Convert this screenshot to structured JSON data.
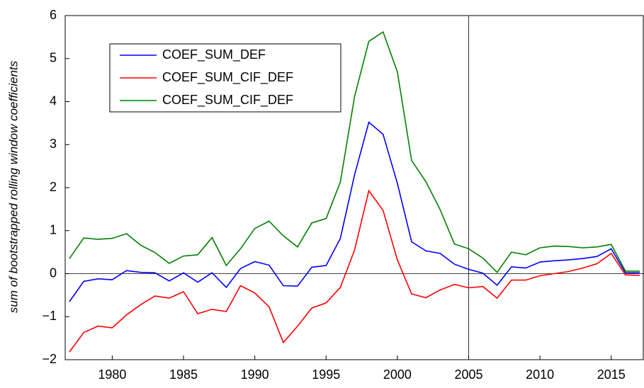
{
  "chart_data": {
    "type": "line",
    "y_label": "sum of bootstrapped rolling window coefficients",
    "x": [
      1977,
      1978,
      1979,
      1980,
      1981,
      1982,
      1983,
      1984,
      1985,
      1986,
      1987,
      1988,
      1989,
      1990,
      1991,
      1992,
      1993,
      1994,
      1995,
      1996,
      1997,
      1998,
      1999,
      2000,
      2001,
      2002,
      2003,
      2004,
      2005,
      2006,
      2007,
      2008,
      2009,
      2010,
      2011,
      2012,
      2013,
      2014,
      2015,
      2016,
      2017
    ],
    "series": [
      {
        "name": "COEF_SUM_DEF",
        "color": "#0000ff",
        "values": [
          -0.65,
          -0.18,
          -0.12,
          -0.14,
          0.07,
          0.03,
          0.02,
          -0.17,
          0.02,
          -0.2,
          0.02,
          -0.32,
          0.12,
          0.28,
          0.2,
          -0.28,
          -0.29,
          0.15,
          0.19,
          0.82,
          2.3,
          3.52,
          3.24,
          2.1,
          0.74,
          0.53,
          0.47,
          0.22,
          0.1,
          0.01,
          -0.27,
          0.16,
          0.13,
          0.27,
          0.3,
          0.32,
          0.35,
          0.4,
          0.58,
          0.02,
          0.02
        ]
      },
      {
        "name": "COEF_SUM_CIF_DEF",
        "color": "#ff0000",
        "values": [
          -1.82,
          -1.37,
          -1.22,
          -1.26,
          -0.96,
          -0.72,
          -0.52,
          -0.57,
          -0.42,
          -0.93,
          -0.83,
          -0.88,
          -0.28,
          -0.45,
          -0.77,
          -1.6,
          -1.22,
          -0.8,
          -0.68,
          -0.32,
          0.55,
          1.93,
          1.47,
          0.32,
          -0.47,
          -0.56,
          -0.38,
          -0.25,
          -0.33,
          -0.3,
          -0.57,
          -0.15,
          -0.15,
          -0.05,
          0.0,
          0.05,
          0.13,
          0.23,
          0.47,
          -0.03,
          -0.04
        ]
      },
      {
        "name": "COEF_SUM_CIF_DEF",
        "color": "#008000",
        "values": [
          0.35,
          0.83,
          0.8,
          0.82,
          0.93,
          0.66,
          0.49,
          0.24,
          0.41,
          0.44,
          0.84,
          0.19,
          0.58,
          1.05,
          1.22,
          0.88,
          0.62,
          1.18,
          1.28,
          2.13,
          4.12,
          5.4,
          5.62,
          4.69,
          2.63,
          2.14,
          1.49,
          0.69,
          0.58,
          0.36,
          0.03,
          0.5,
          0.44,
          0.6,
          0.64,
          0.63,
          0.6,
          0.62,
          0.68,
          0.06,
          0.06
        ]
      }
    ],
    "xlim": [
      1976.7,
      2017.3
    ],
    "xticks": [
      1980,
      1985,
      1990,
      1995,
      2000,
      2005,
      2010,
      2015
    ],
    "ylim": [
      -2,
      6
    ],
    "yticks": [
      {
        "value": -2,
        "label": "−2"
      },
      {
        "value": -1,
        "label": "−1"
      },
      0,
      1,
      2,
      3,
      4,
      5,
      6
    ],
    "hline": 0,
    "vline": 2005,
    "grid": false,
    "legend": "upper left"
  }
}
